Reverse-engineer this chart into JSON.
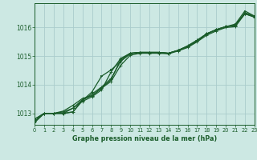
{
  "title": "Graphe pression niveau de la mer (hPa)",
  "bg_color": "#cce8e3",
  "grid_color": "#aacccc",
  "line_color": "#1a5c2a",
  "xlim": [
    0,
    23
  ],
  "ylim": [
    1012.6,
    1016.85
  ],
  "yticks": [
    1013,
    1014,
    1015,
    1016
  ],
  "xticks": [
    0,
    1,
    2,
    3,
    4,
    5,
    6,
    7,
    8,
    9,
    10,
    11,
    12,
    13,
    14,
    15,
    16,
    17,
    18,
    19,
    20,
    21,
    22,
    23
  ],
  "series": [
    [
      1012.72,
      1013.0,
      1013.0,
      1013.0,
      1013.05,
      1013.45,
      1013.68,
      1013.92,
      1014.22,
      1014.82,
      1015.08,
      1015.13,
      1015.13,
      1015.13,
      1015.1,
      1015.2,
      1015.35,
      1015.55,
      1015.78,
      1015.92,
      1016.03,
      1016.08,
      1016.48,
      1016.38
    ],
    [
      1012.8,
      1013.0,
      1013.0,
      1013.05,
      1013.18,
      1013.48,
      1013.62,
      1013.88,
      1014.12,
      1014.68,
      1015.03,
      1015.1,
      1015.1,
      1015.1,
      1015.08,
      1015.18,
      1015.3,
      1015.5,
      1015.73,
      1015.88,
      1016.0,
      1016.03,
      1016.48,
      1016.36
    ],
    [
      1012.8,
      1013.0,
      1013.0,
      1013.08,
      1013.28,
      1013.52,
      1013.62,
      1013.88,
      1014.18,
      1014.88,
      1015.1,
      1015.13,
      1015.13,
      1015.13,
      1015.1,
      1015.2,
      1015.36,
      1015.56,
      1015.78,
      1015.93,
      1016.03,
      1016.08,
      1016.52,
      1016.4
    ],
    [
      1012.72,
      1013.0,
      1013.0,
      1013.0,
      1013.18,
      1013.42,
      1013.58,
      1013.82,
      1014.45,
      1014.92,
      1015.1,
      1015.13,
      1015.13,
      1015.13,
      1015.1,
      1015.2,
      1015.33,
      1015.53,
      1015.78,
      1015.92,
      1016.03,
      1016.08,
      1016.48,
      1016.38
    ]
  ],
  "special_series": [
    1012.68,
    1013.0,
    1013.0,
    1013.0,
    1013.05,
    1013.45,
    1013.75,
    1014.3,
    1014.52,
    1014.82,
    1015.1,
    1015.13,
    1015.13,
    1015.13,
    1015.1,
    1015.2,
    1015.33,
    1015.53,
    1015.78,
    1015.92,
    1016.03,
    1016.12,
    1016.58,
    1016.4
  ]
}
